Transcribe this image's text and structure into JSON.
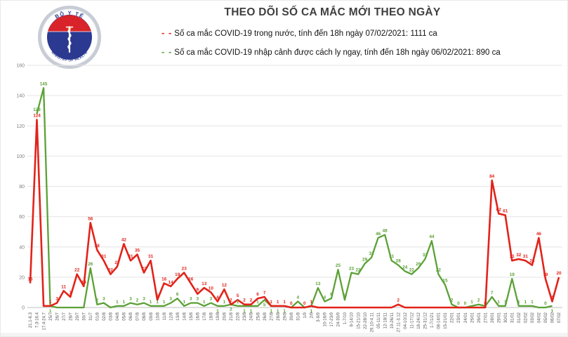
{
  "title": "THEO DÕI SỐ CA MẮC MỚI THEO NGÀY",
  "logo": {
    "top_text": "BỘ Y TẾ",
    "bottom_text": "MINISTRY OF HEALTH"
  },
  "legend": [
    {
      "marker": "- -",
      "color": "#e2231a",
      "label": "Số ca mắc COVID-19 trong nước, tính đến 18h ngày 07/02/2021: 1111 ca"
    },
    {
      "marker": "- -",
      "color": "#5ba136",
      "label": "Số ca mắc COVID-19 nhập cảnh được cách ly ngay, tính đến 18h ngày 06/02/2021: 890 ca"
    }
  ],
  "chart_data": {
    "type": "line",
    "title": "THEO DÕI SỐ CA MẮC MỚI THEO NGÀY",
    "xlabel": "",
    "ylabel": "",
    "ylim": [
      0,
      160
    ],
    "yticks": [
      0,
      20,
      40,
      60,
      80,
      100,
      120,
      140,
      160
    ],
    "grid": true,
    "legend_position": "top",
    "categories": [
      "21.1-6.3",
      "7.3-16.4",
      "17.4-24.7",
      "25/7",
      "26/7",
      "27/7",
      "28/7",
      "29/7",
      "30/7",
      "31/7",
      "01/8",
      "02/8",
      "03/8",
      "04/8",
      "05/8",
      "06/8",
      "07/8",
      "08/8",
      "09/8",
      "10/8",
      "11/8",
      "12/8",
      "13/8",
      "14/8",
      "15/8",
      "16/8",
      "17/8",
      "18/8",
      "19/8",
      "20/8",
      "21/8",
      "22/8",
      "23/8",
      "24/8",
      "25/8",
      "26/8",
      "27/8",
      "28/8",
      "29/8",
      "30/8",
      "31/8",
      "1/9",
      "2/9",
      "3-9/9",
      "10-16/9",
      "17-23/9",
      "24-30/9",
      "1-7/10",
      "8-14/10",
      "15-21/10",
      "22-28/10",
      "29.10-4.11",
      "05-11/11",
      "12-18/11",
      "19-26/11",
      "27.11-3.12",
      "04-10/12",
      "11-17/12",
      "18-24/12",
      "25-31/12",
      "1-7/1/21",
      "08-14/01",
      "15-21/01",
      "22/01",
      "23/01",
      "24/01",
      "25/01",
      "26/01",
      "27/01",
      "28/01",
      "29/01",
      "30/01",
      "31/01",
      "01/02",
      "02/02",
      "03/02",
      "04/02",
      "05/02",
      "06/02",
      "07/02"
    ],
    "series": [
      {
        "name": "Số ca mắc COVID-19 trong nước",
        "color": "#e2231a",
        "values": [
          16,
          124,
          1,
          1,
          3,
          11,
          7,
          22,
          14,
          56,
          38,
          31,
          22,
          27,
          42,
          31,
          35,
          23,
          31,
          5,
          16,
          14,
          19,
          23,
          16,
          9,
          13,
          10,
          4,
          12,
          2,
          5,
          2,
          2,
          6,
          7,
          1,
          1,
          1,
          0,
          0,
          0,
          1,
          0,
          0,
          0,
          0,
          0,
          0,
          0,
          0,
          0,
          0,
          0,
          0,
          2,
          0,
          0,
          0,
          0,
          0,
          0,
          0,
          0,
          0,
          0,
          0,
          0,
          0,
          84,
          62,
          61,
          31,
          32,
          31,
          28,
          46,
          19,
          4,
          20
        ],
        "labels": [
          "16",
          "124",
          "",
          "1",
          "3",
          "11",
          "7",
          "22",
          "14",
          "56",
          "38",
          "31",
          "22",
          "27",
          "42",
          "31",
          "35",
          "23",
          "31",
          "5",
          "16",
          "14",
          "19",
          "23",
          "16",
          "9",
          "13",
          "10",
          "4",
          "12",
          "2",
          "5",
          "2",
          "2",
          "6",
          "7",
          "1",
          "1",
          "1",
          "0",
          "",
          "0",
          "1",
          "",
          "",
          "",
          "",
          "",
          "",
          "",
          "",
          "",
          "",
          "",
          "",
          "2",
          "",
          "",
          "",
          "",
          "",
          "",
          "",
          "",
          "",
          "",
          "",
          "",
          "0",
          "84",
          "62",
          "61",
          "31",
          "32",
          "31",
          "28",
          "46",
          "19",
          "4",
          "20"
        ]
      },
      {
        "name": "Số ca mắc COVID-19 nhập cảnh được cách ly ngay",
        "color": "#5ba136",
        "values": [
          null,
          128,
          145,
          1,
          0,
          0,
          0,
          0,
          0,
          26,
          2,
          3,
          0,
          1,
          1,
          3,
          2,
          3,
          1,
          1,
          1,
          3,
          6,
          1,
          3,
          3,
          1,
          3,
          1,
          1,
          2,
          1,
          1,
          1,
          1,
          5,
          1,
          1,
          1,
          0,
          4,
          0,
          1,
          13,
          4,
          6,
          25,
          5,
          23,
          22,
          29,
          33,
          46,
          48,
          31,
          28,
          24,
          22,
          26,
          32,
          44,
          22,
          15,
          2,
          0,
          0,
          1,
          2,
          1,
          7,
          1,
          1,
          19,
          1,
          1,
          1,
          0,
          0,
          1,
          null
        ],
        "labels": [
          "",
          "128",
          "145",
          "1",
          "",
          "",
          "",
          "",
          "",
          "26",
          "2",
          "3",
          "",
          "1",
          "1",
          "3",
          "2",
          "3",
          "1",
          "1",
          "1",
          "3",
          "6",
          "1",
          "3",
          "3",
          "1",
          "3",
          "1",
          "1",
          "2",
          "1",
          "1",
          "1",
          "1",
          "5",
          "1",
          "1",
          "1",
          "",
          "4",
          "",
          "1",
          "13",
          "4",
          "6",
          "25",
          "5",
          "23",
          "22",
          "29",
          "33",
          "46",
          "48",
          "31",
          "28",
          "24",
          "22",
          "26",
          "32",
          "44",
          "22",
          "15",
          "2",
          "0",
          "0",
          "1",
          "2",
          "",
          "7",
          "1",
          "1",
          "19",
          "1",
          "1",
          "1",
          "",
          "0",
          "1",
          ""
        ]
      }
    ]
  }
}
